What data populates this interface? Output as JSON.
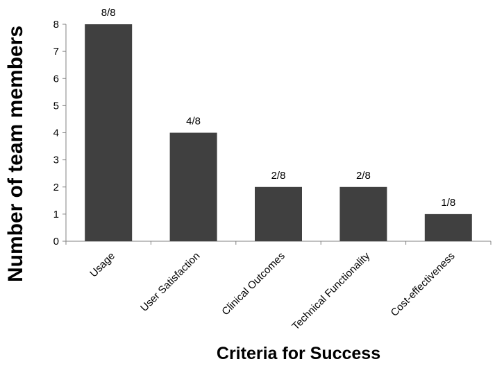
{
  "chart_data": {
    "type": "bar",
    "categories": [
      "Usage",
      "User Satisfaction",
      "Clinical Outcomes",
      "Technical Functionality",
      "Cost-effectiveness"
    ],
    "values": [
      8,
      4,
      2,
      2,
      1
    ],
    "data_labels": [
      "8/8",
      "4/8",
      "2/8",
      "2/8",
      "1/8"
    ],
    "title": "",
    "xlabel": "Criteria for Success",
    "ylabel": "Number of team members",
    "ylim": [
      0,
      8
    ],
    "yticks": [
      "0",
      "1",
      "2",
      "3",
      "4",
      "5",
      "6",
      "7",
      "8"
    ],
    "grid": false,
    "legend": "none",
    "bar_color": "#404040",
    "axis_color": "#808080"
  }
}
